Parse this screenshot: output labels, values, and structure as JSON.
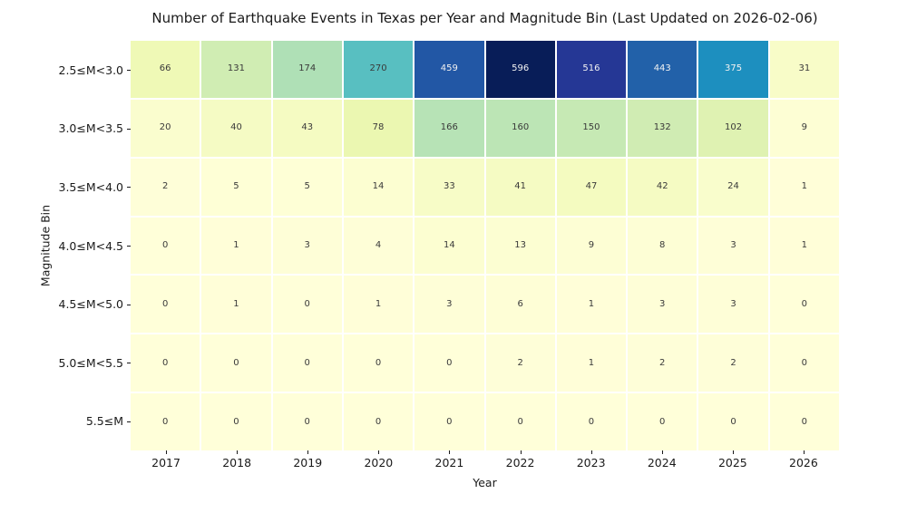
{
  "chart_data": {
    "type": "heatmap",
    "title": "Number of Earthquake Events in Texas per Year and Magnitude Bin (Last Updated on 2026-02-06)",
    "xlabel": "Year",
    "ylabel": "Magnitude Bin",
    "colormap": "YlGnBu",
    "vmin": 0,
    "vmax": 596,
    "grid_lines": "white",
    "legend": "none",
    "categories": [
      "2017",
      "2018",
      "2019",
      "2020",
      "2021",
      "2022",
      "2023",
      "2024",
      "2025",
      "2026"
    ],
    "rows": [
      "2.5≤M<3.0",
      "3.0≤M<3.5",
      "3.5≤M<4.0",
      "4.0≤M<4.5",
      "4.5≤M<5.0",
      "5.0≤M<5.5",
      "5.5≤M"
    ],
    "series": [
      {
        "name": "2.5≤M<3.0",
        "values": [
          66,
          131,
          174,
          270,
          459,
          596,
          516,
          443,
          375,
          31
        ]
      },
      {
        "name": "3.0≤M<3.5",
        "values": [
          20,
          40,
          43,
          78,
          166,
          160,
          150,
          132,
          102,
          9
        ]
      },
      {
        "name": "3.5≤M<4.0",
        "values": [
          2,
          5,
          5,
          14,
          33,
          41,
          47,
          42,
          24,
          1
        ]
      },
      {
        "name": "4.0≤M<4.5",
        "values": [
          0,
          1,
          3,
          4,
          14,
          13,
          9,
          8,
          3,
          1
        ]
      },
      {
        "name": "4.5≤M<5.0",
        "values": [
          0,
          1,
          0,
          1,
          3,
          6,
          1,
          3,
          3,
          0
        ]
      },
      {
        "name": "5.0≤M<5.5",
        "values": [
          0,
          0,
          0,
          0,
          0,
          2,
          1,
          2,
          2,
          0
        ]
      },
      {
        "name": "5.5≤M",
        "values": [
          0,
          0,
          0,
          0,
          0,
          0,
          0,
          0,
          0,
          0
        ]
      }
    ],
    "cell_colors": [
      [
        "#eff9b6",
        "#d0edb3",
        "#afe0b6",
        "#58bfc1",
        "#2257a5",
        "#081d58",
        "#253795",
        "#2261a9",
        "#1d8fbf",
        "#f8fcc8"
      ],
      [
        "#fafdce",
        "#f5fbc4",
        "#f5fbc2",
        "#ebf7b1",
        "#b7e3b6",
        "#bce5b5",
        "#c6e9b4",
        "#d0ecb3",
        "#dff2b2",
        "#fdfed4"
      ],
      [
        "#fefed8",
        "#feffd6",
        "#feffd6",
        "#fcfed1",
        "#f7fcc7",
        "#f5fbc3",
        "#f4fbc0",
        "#f5fbc3",
        "#f9fdcc",
        "#fffed8"
      ],
      [
        "#ffffd9",
        "#fffed8",
        "#fefed7",
        "#fefed7",
        "#fcfed1",
        "#fcfed2",
        "#fdfed4",
        "#fdfed5",
        "#fefed7",
        "#fffed8"
      ],
      [
        "#ffffd9",
        "#fffed8",
        "#ffffd9",
        "#fffed8",
        "#fefed7",
        "#fefed6",
        "#fffed8",
        "#fefed7",
        "#fefed7",
        "#ffffd9"
      ],
      [
        "#ffffd9",
        "#ffffd9",
        "#ffffd9",
        "#ffffd9",
        "#ffffd9",
        "#fefed8",
        "#fffed8",
        "#fefed8",
        "#fefed8",
        "#ffffd9"
      ],
      [
        "#ffffd9",
        "#ffffd9",
        "#ffffd9",
        "#ffffd9",
        "#ffffd9",
        "#ffffd9",
        "#ffffd9",
        "#ffffd9",
        "#ffffd9",
        "#ffffd9"
      ]
    ],
    "style": {
      "background": "#ffffff",
      "annot_dark_text": "#3a3a3a",
      "annot_light_text": "#f2f2f2",
      "tick_color": "#1a1a1a"
    }
  }
}
